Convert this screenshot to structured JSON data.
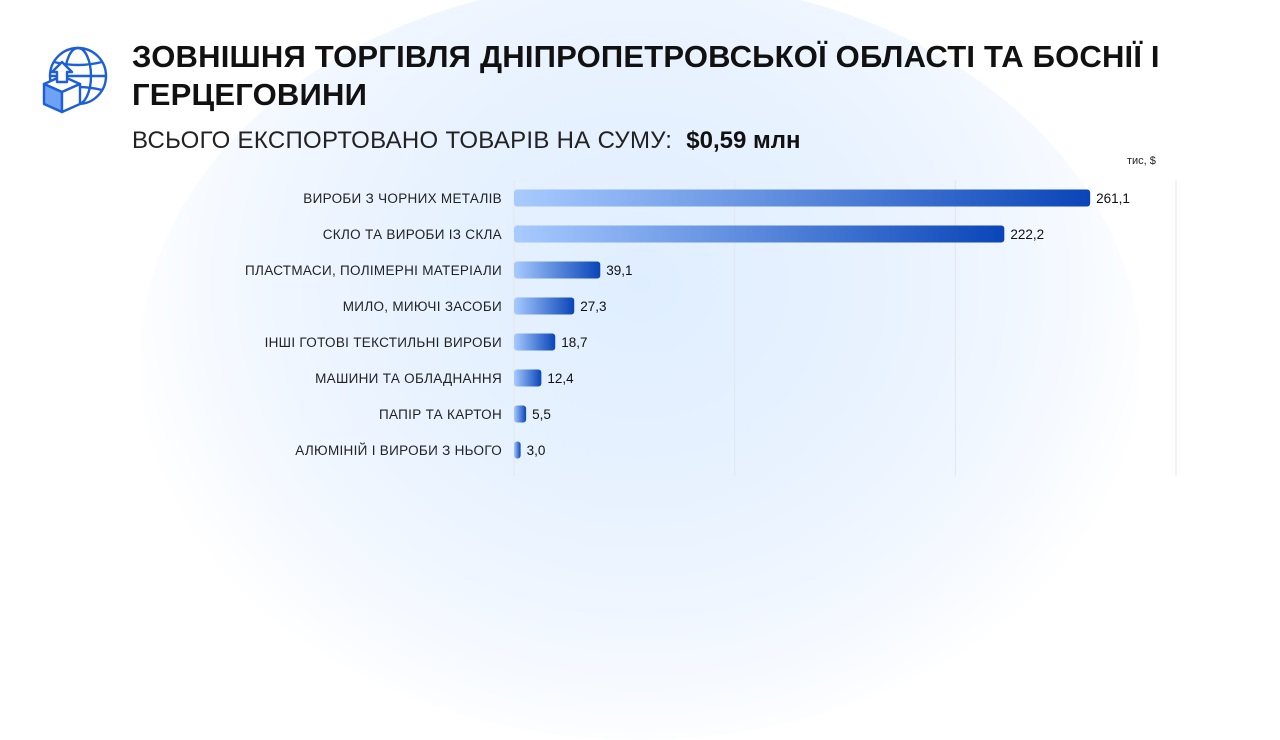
{
  "header": {
    "title": "ЗОВНІШНЯ ТОРГІВЛЯ ДНІПРОПЕТРОВСЬКОЇ ОБЛАСТІ ТА БОСНІЇ І ГЕРЦЕГОВИНИ",
    "summary_label": "ВСЬОГО ЕКСПОРТОВАНО ТОВАРІВ НА СУМУ:",
    "summary_value": "$0,59 млн",
    "logo_icon": "globe-export-box-icon"
  },
  "chart_data": {
    "type": "bar",
    "orientation": "horizontal",
    "unit_label": "тис, $",
    "categories": [
      "ВИРОБИ З ЧОРНИХ МЕТАЛІВ",
      "СКЛО ТА ВИРОБИ ІЗ СКЛА",
      "ПЛАСТМАСИ, ПОЛІМЕРНІ МАТЕРІАЛИ",
      "МИЛО, МИЮЧІ ЗАСОБИ",
      "ІНШІ ГОТОВІ ТЕКСТИЛЬНІ ВИРОБИ",
      "МАШИНИ ТА ОБЛАДНАННЯ",
      "ПАПІР ТА КАРТОН",
      "АЛЮМІНІЙ І ВИРОБИ З НЬОГО"
    ],
    "values": [
      261.1,
      222.2,
      39.1,
      27.3,
      18.7,
      12.4,
      5.5,
      3.0
    ],
    "value_labels": [
      "261,1",
      "222,2",
      "39,1",
      "27,3",
      "18,7",
      "12,4",
      "5,5",
      "3,0"
    ],
    "xlim": [
      0,
      300
    ],
    "grid": true,
    "colors": {
      "bar_start": "#a8cbff",
      "bar_end": "#0a45b8",
      "grid": "#e2e6ee"
    }
  }
}
